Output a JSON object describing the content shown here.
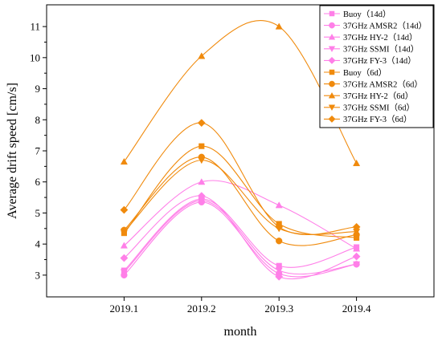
{
  "chart_data": {
    "type": "line",
    "title": "",
    "xlabel": "month",
    "ylabel": "Average drift speed [cm/s]",
    "categories": [
      "2019.1",
      "2019.2",
      "2019.3",
      "2019.4"
    ],
    "xlim": [
      2019.0,
      2019.5
    ],
    "ylim": [
      2.3,
      11.7
    ],
    "y_ticks": [
      3,
      4,
      5,
      6,
      7,
      8,
      9,
      10,
      11
    ],
    "grid": false,
    "legend_position": "top-right",
    "colors": {
      "pink": "#ff7fe8",
      "orange": "#f08a0c"
    },
    "series": [
      {
        "name": "Buoy（14d）",
        "color": "pink",
        "marker": "square",
        "values": [
          3.15,
          5.45,
          3.3,
          3.9
        ]
      },
      {
        "name": "37GHz AMSR2（14d）",
        "color": "pink",
        "marker": "circle",
        "values": [
          3.0,
          5.35,
          3.05,
          3.35
        ]
      },
      {
        "name": "37GHz HY-2（14d）",
        "color": "pink",
        "marker": "triangle-up",
        "values": [
          3.95,
          6.0,
          5.25,
          3.85
        ]
      },
      {
        "name": "37GHz SSMI（14d）",
        "color": "pink",
        "marker": "triangle-down",
        "values": [
          3.1,
          5.4,
          3.15,
          3.35
        ]
      },
      {
        "name": "37GHz FY-3（14d）",
        "color": "pink",
        "marker": "diamond",
        "values": [
          3.55,
          5.55,
          2.95,
          3.6
        ]
      },
      {
        "name": "Buoy（6d）",
        "color": "orange",
        "marker": "square",
        "values": [
          4.35,
          7.15,
          4.65,
          4.2
        ]
      },
      {
        "name": "37GHz AMSR2（6d）",
        "color": "orange",
        "marker": "circle",
        "values": [
          4.45,
          6.8,
          4.1,
          4.3
        ]
      },
      {
        "name": "37GHz HY-2（6d）",
        "color": "orange",
        "marker": "triangle-up",
        "values": [
          6.65,
          10.05,
          11.0,
          6.6
        ]
      },
      {
        "name": "37GHz SSMI（6d）",
        "color": "orange",
        "marker": "triangle-down",
        "values": [
          4.4,
          6.7,
          4.5,
          4.4
        ]
      },
      {
        "name": "37GHz FY-3（6d）",
        "color": "orange",
        "marker": "diamond",
        "values": [
          5.1,
          7.9,
          4.55,
          4.55
        ]
      }
    ]
  }
}
